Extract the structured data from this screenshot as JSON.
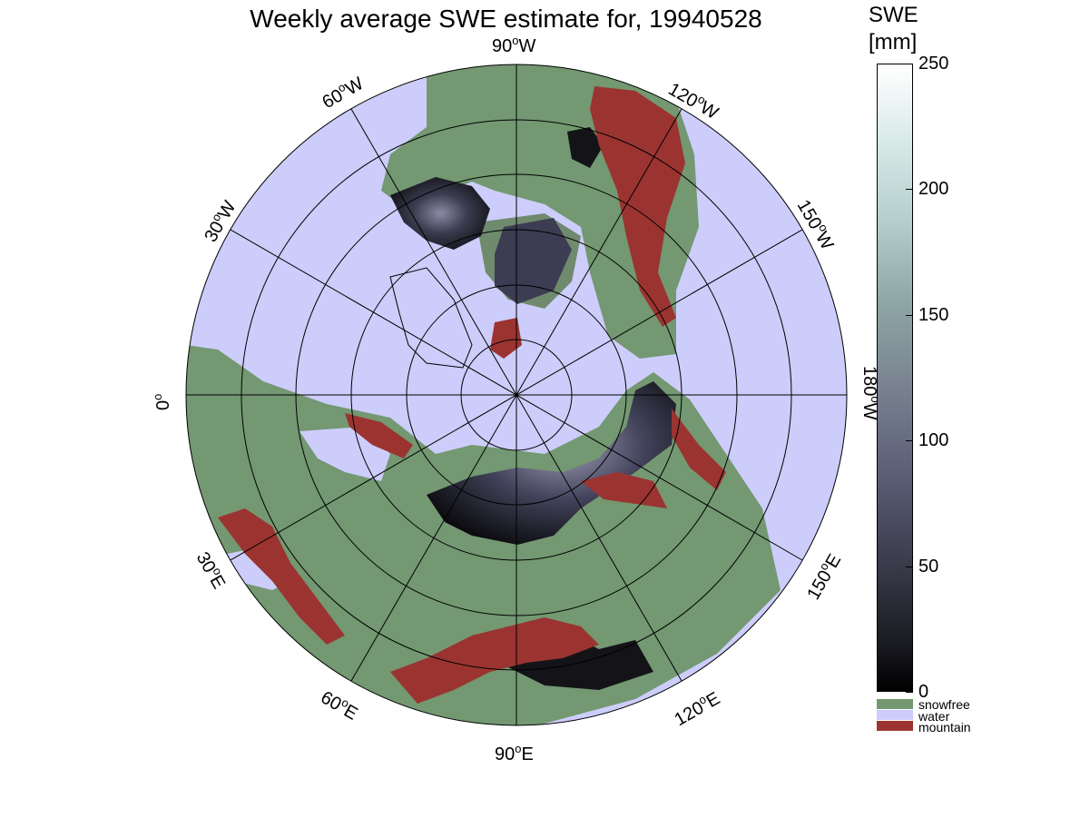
{
  "title": "Weekly average SWE estimate for, 19940528",
  "colorbar": {
    "title_line1": "SWE",
    "title_line2": "[mm]",
    "ticks": [
      "250",
      "200",
      "150",
      "100",
      "50",
      "0"
    ],
    "tick_values": [
      250,
      200,
      150,
      100,
      50,
      0
    ],
    "range": [
      0,
      250
    ],
    "categories": [
      {
        "label": "snowfree",
        "color": "#739872"
      },
      {
        "label": "water",
        "color": "#cdcdfb"
      },
      {
        "label": "mountain",
        "color": "#9b3431"
      }
    ]
  },
  "longitude_labels": [
    {
      "text": "90",
      "suffix": "W",
      "lon_deg": 90
    },
    {
      "text": "120",
      "suffix": "W",
      "lon_deg": 60
    },
    {
      "text": "150",
      "suffix": "W",
      "lon_deg": 30
    },
    {
      "text": "180",
      "suffix": "W",
      "lon_deg": 0
    },
    {
      "text": "150",
      "suffix": "E",
      "lon_deg": -30
    },
    {
      "text": "120",
      "suffix": "E",
      "lon_deg": -60
    },
    {
      "text": "90",
      "suffix": "E",
      "lon_deg": -90
    },
    {
      "text": "60",
      "suffix": "E",
      "lon_deg": -120
    },
    {
      "text": "30",
      "suffix": "E",
      "lon_deg": -150
    },
    {
      "text": "0",
      "suffix": "",
      "lon_deg": 180
    },
    {
      "text": "30",
      "suffix": "W",
      "lon_deg": 150
    },
    {
      "text": "60",
      "suffix": "W",
      "lon_deg": 120
    }
  ],
  "colors": {
    "ocean": "#cdcdfb",
    "land": "#739872",
    "mountain": "#9b3431",
    "snow_dark": "#111116",
    "snow_mid": "#4a4a5e",
    "graticule": "#000000"
  }
}
